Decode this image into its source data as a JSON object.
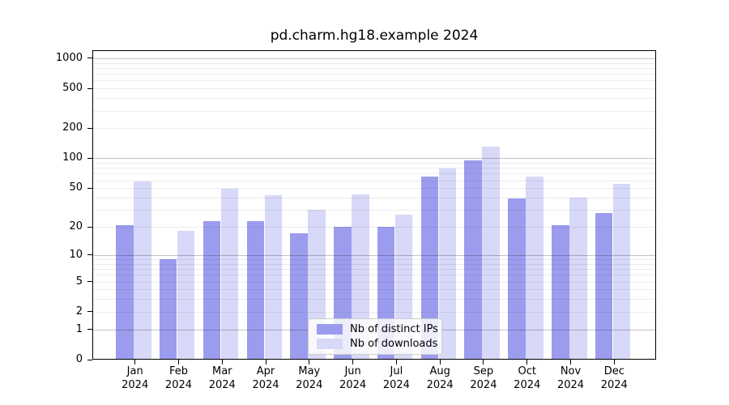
{
  "chart_data": {
    "type": "bar",
    "title": "pd.charm.hg18.example 2024",
    "categories": [
      "Jan",
      "Feb",
      "Mar",
      "Apr",
      "May",
      "Jun",
      "Jul",
      "Aug",
      "Sep",
      "Oct",
      "Nov",
      "Dec"
    ],
    "year_label": "2024",
    "series": [
      {
        "name": "Nb of distinct IPs",
        "color": "#9c9cee",
        "values": [
          21,
          9,
          23,
          23,
          17,
          20,
          20,
          65,
          95,
          39,
          21,
          28
        ]
      },
      {
        "name": "Nb of downloads",
        "color": "#d8d8f8",
        "values": [
          59,
          18,
          49,
          42,
          30,
          43,
          27,
          79,
          130,
          65,
          40,
          55
        ]
      }
    ],
    "y_axis": {
      "scale": "log10(value+1)",
      "tick_labels": [
        1000,
        500,
        200,
        100,
        50,
        20,
        10,
        5,
        2,
        1,
        0
      ],
      "range": [
        0,
        1200
      ]
    },
    "x_axis": {
      "label_format": "month over year"
    },
    "grid": "on",
    "legend": {
      "position": "lower center"
    }
  }
}
